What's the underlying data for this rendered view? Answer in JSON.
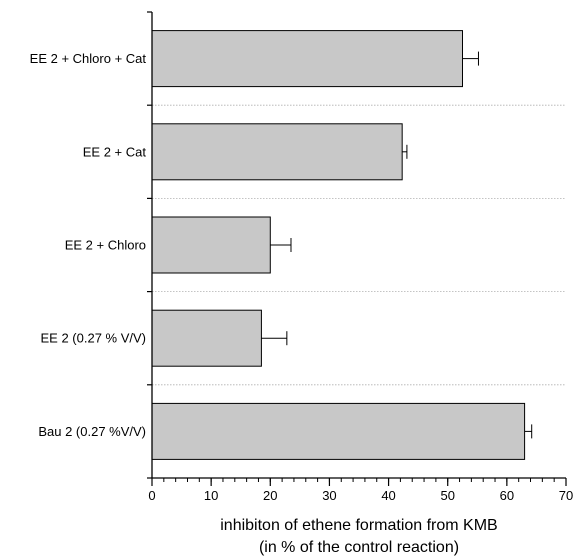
{
  "chart_data": {
    "type": "bar",
    "orientation": "horizontal",
    "categories": [
      "EE 2 + Chloro + Cat",
      "EE 2 + Cat",
      "EE 2 + Chloro",
      "EE 2 (0.27 % V/V)",
      "Bau 2 (0.27 %V/V)"
    ],
    "values": [
      52.5,
      42.3,
      20.0,
      18.5,
      63.0
    ],
    "errors": [
      2.7,
      0.8,
      3.5,
      4.3,
      1.2
    ],
    "xlim": [
      0,
      70
    ],
    "x_ticks": [
      0,
      10,
      20,
      30,
      40,
      50,
      60,
      70
    ],
    "minor_tick_step": 2,
    "xlabel_line1": "inhibiton of ethene formation from KMB",
    "xlabel_line2": "(in % of the control reaction)",
    "ylabel": "",
    "grid": "horizontal dotted separators between categories",
    "legend": "none",
    "colors": {
      "bar_fill": "#c8c8c8",
      "bar_stroke": "#000000",
      "axis": "#000000",
      "separator": "#b0b0b0"
    }
  }
}
